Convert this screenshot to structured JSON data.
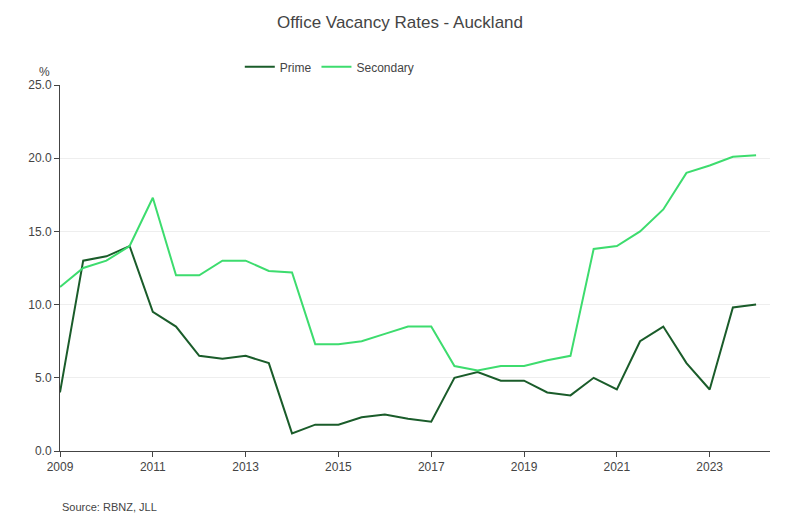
{
  "chart_data": {
    "type": "line",
    "title": "Office Vacancy Rates - Auckland",
    "ylabel": "%",
    "annotation": "Source: RBNZ, JLL",
    "x": [
      2009,
      2009.5,
      2010,
      2010.5,
      2011,
      2011.5,
      2012,
      2012.5,
      2013,
      2013.5,
      2014,
      2014.5,
      2015,
      2015.5,
      2016,
      2016.5,
      2017,
      2017.5,
      2018,
      2018.5,
      2019,
      2019.5,
      2020,
      2020.5,
      2021,
      2021.5,
      2022,
      2022.5,
      2023,
      2023.5,
      2024
    ],
    "series": [
      {
        "name": "Prime",
        "color": "#1a5c2a",
        "values": [
          4.0,
          13.0,
          13.3,
          14.0,
          9.5,
          8.5,
          6.5,
          6.3,
          6.5,
          6.0,
          1.2,
          1.8,
          1.8,
          2.3,
          2.5,
          2.2,
          2.0,
          5.0,
          5.4,
          4.8,
          4.8,
          4.0,
          3.8,
          5.0,
          4.2,
          7.5,
          8.5,
          6.0,
          4.2,
          9.8,
          10.0
        ]
      },
      {
        "name": "Secondary",
        "color": "#3ddc6e",
        "values": [
          11.2,
          12.5,
          13.0,
          14.0,
          17.3,
          12.0,
          12.0,
          13.0,
          13.0,
          12.3,
          12.2,
          7.3,
          7.3,
          7.5,
          8.0,
          8.5,
          8.5,
          5.8,
          5.5,
          5.8,
          5.8,
          6.2,
          6.5,
          13.8,
          14.0,
          15.0,
          16.5,
          19.0,
          19.5,
          20.1,
          20.2
        ]
      }
    ],
    "xlim": [
      2009,
      2024.3
    ],
    "xticks": [
      2009,
      2011,
      2013,
      2015,
      2017,
      2019,
      2021,
      2023
    ],
    "ylim": [
      0,
      25
    ],
    "yticks": [
      {
        "value": 0,
        "label": "0.0"
      },
      {
        "value": 5,
        "label": "5.0"
      },
      {
        "value": 10,
        "label": "10.0"
      },
      {
        "value": 15,
        "label": "15.0"
      },
      {
        "value": 20,
        "label": "20.0"
      },
      {
        "value": 25,
        "label": "25.0"
      }
    ],
    "grid": true,
    "legend": "top"
  }
}
